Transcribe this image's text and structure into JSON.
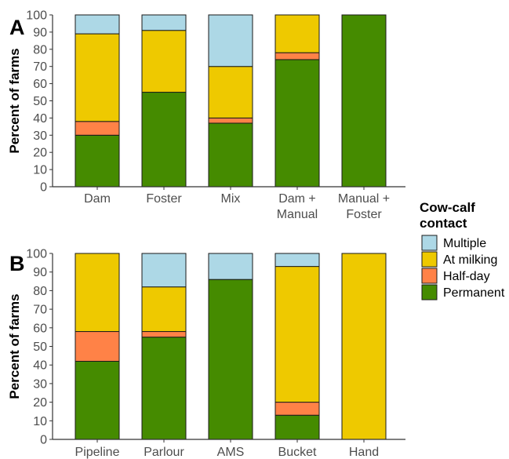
{
  "legend": {
    "title_line1": "Cow-calf",
    "title_line2": "contact",
    "items": [
      {
        "label": "Multiple",
        "color": "#add8e6"
      },
      {
        "label": "At milking",
        "color": "#eec900"
      },
      {
        "label": "Half-day",
        "color": "#ff8247"
      },
      {
        "label": "Permanent",
        "color": "#458b00"
      }
    ]
  },
  "chart_data": [
    {
      "type": "bar",
      "stacked": true,
      "panel_label": "A",
      "ylabel": "Percent of farms",
      "ylim": [
        0,
        100
      ],
      "yticks": [
        0,
        10,
        20,
        30,
        40,
        50,
        60,
        70,
        80,
        90,
        100
      ],
      "categories": [
        "Dam",
        "Foster",
        "Mix",
        "Dam + Manual",
        "Manual + Foster"
      ],
      "category_lines": [
        [
          "Dam"
        ],
        [
          "Foster"
        ],
        [
          "Mix"
        ],
        [
          "Dam +",
          "Manual"
        ],
        [
          "Manual +",
          "Foster"
        ]
      ],
      "series": [
        {
          "name": "Permanent",
          "values": [
            30,
            55,
            37,
            74,
            100
          ]
        },
        {
          "name": "Half-day",
          "values": [
            8,
            0,
            3,
            4,
            0
          ]
        },
        {
          "name": "At milking",
          "values": [
            51,
            36,
            30,
            22,
            0
          ]
        },
        {
          "name": "Multiple",
          "values": [
            11,
            9,
            30,
            0,
            0
          ]
        }
      ]
    },
    {
      "type": "bar",
      "stacked": true,
      "panel_label": "B",
      "ylabel": "Percent of farms",
      "ylim": [
        0,
        100
      ],
      "yticks": [
        0,
        10,
        20,
        30,
        40,
        50,
        60,
        70,
        80,
        90,
        100
      ],
      "categories": [
        "Pipeline",
        "Parlour",
        "AMS",
        "Bucket",
        "Hand"
      ],
      "category_lines": [
        [
          "Pipeline"
        ],
        [
          "Parlour"
        ],
        [
          "AMS"
        ],
        [
          "Bucket"
        ],
        [
          "Hand"
        ]
      ],
      "series": [
        {
          "name": "Permanent",
          "values": [
            42,
            55,
            86,
            13,
            0
          ]
        },
        {
          "name": "Half-day",
          "values": [
            16,
            3,
            0,
            7,
            0
          ]
        },
        {
          "name": "At milking",
          "values": [
            42,
            24,
            0,
            73,
            100
          ]
        },
        {
          "name": "Multiple",
          "values": [
            0,
            18,
            14,
            7,
            0
          ]
        }
      ]
    }
  ]
}
